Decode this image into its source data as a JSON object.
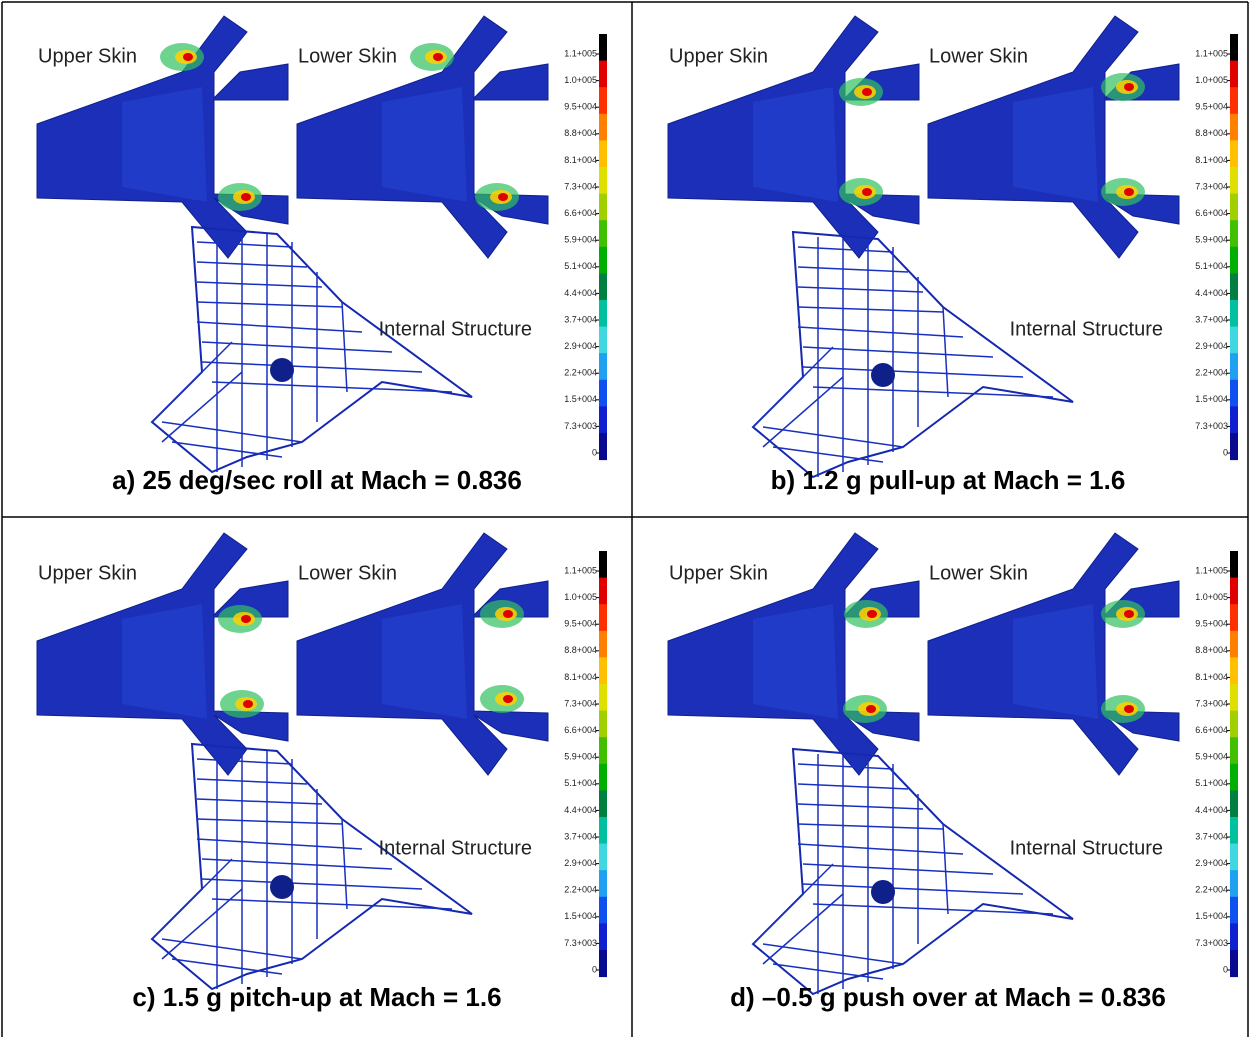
{
  "panels": [
    {
      "caption": "a) 25 deg/sec roll at Mach = 0.836"
    },
    {
      "caption": "b) 1.2 g pull-up at Mach = 1.6"
    },
    {
      "caption": "c) 1.5 g pitch-up at Mach = 1.6"
    },
    {
      "caption": "d) –0.5 g push over at Mach = 0.836"
    }
  ],
  "labels": {
    "upper_skin": "Upper Skin",
    "lower_skin": "Lower Skin",
    "internal_structure": "Internal Structure"
  },
  "colorbar": {
    "labels": [
      "1.1+005",
      "1.0+005",
      "9.5+004",
      "8.8+004",
      "8.1+004",
      "7.3+004",
      "6.6+004",
      "5.9+004",
      "5.1+004",
      "4.4+004",
      "3.7+004",
      "2.9+004",
      "2.2+004",
      "1.5+004",
      "7.3+003",
      "0"
    ],
    "colors": [
      "#000000",
      "#e00000",
      "#ff3000",
      "#ff8000",
      "#ffc000",
      "#e0e000",
      "#a0d000",
      "#40c000",
      "#00b000",
      "#008040",
      "#00c0a0",
      "#40d8e0",
      "#20a0f0",
      "#1050f0",
      "#1020d0",
      "#0a0a90"
    ]
  }
}
